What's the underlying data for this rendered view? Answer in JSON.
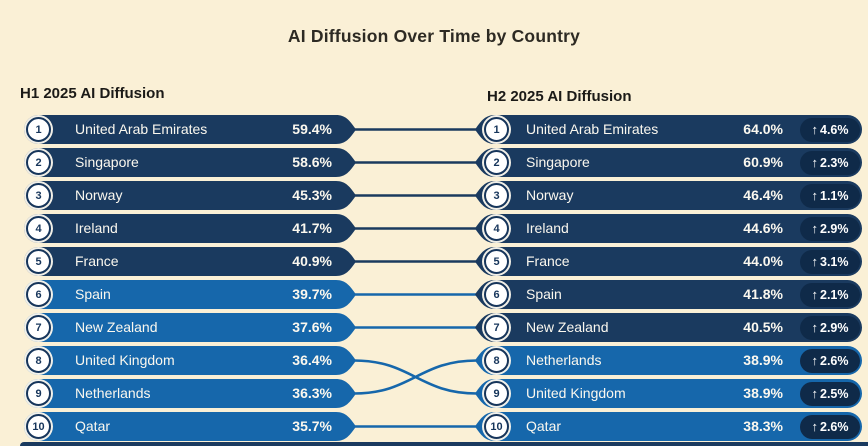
{
  "title": "AI Diffusion Over Time by Country",
  "icons": {
    "up_arrow": "↑"
  },
  "colors": {
    "background": "#FAF0D6",
    "dark_row": "#1A3A5F",
    "light_row": "#1667AB",
    "change_badge": "#0F2A49",
    "row_text": "#FBF8EF",
    "title_text": "#2D2A23"
  },
  "chart_data": {
    "type": "table",
    "title": "AI Diffusion Over Time by Country",
    "description": "Ranked bump-style comparison of AI diffusion percentage by country for H1 vs H2 2025; connector lines link the same country across periods; row color dark navy for values ≥40%, lighter blue below 40%.",
    "columns": [
      {
        "header": "H1 2025 AI Diffusion",
        "rows": [
          {
            "rank": "1",
            "country": "United Arab Emirates",
            "value": "59.4%",
            "tier": "dark"
          },
          {
            "rank": "2",
            "country": "Singapore",
            "value": "58.6%",
            "tier": "dark"
          },
          {
            "rank": "3",
            "country": "Norway",
            "value": "45.3%",
            "tier": "dark"
          },
          {
            "rank": "4",
            "country": "Ireland",
            "value": "41.7%",
            "tier": "dark"
          },
          {
            "rank": "5",
            "country": "France",
            "value": "40.9%",
            "tier": "dark"
          },
          {
            "rank": "6",
            "country": "Spain",
            "value": "39.7%",
            "tier": "light"
          },
          {
            "rank": "7",
            "country": "New Zealand",
            "value": "37.6%",
            "tier": "light"
          },
          {
            "rank": "8",
            "country": "United Kingdom",
            "value": "36.4%",
            "tier": "light"
          },
          {
            "rank": "9",
            "country": "Netherlands",
            "value": "36.3%",
            "tier": "light"
          },
          {
            "rank": "10",
            "country": "Qatar",
            "value": "35.7%",
            "tier": "light"
          }
        ]
      },
      {
        "header": "H2 2025 AI Diffusion",
        "rows": [
          {
            "rank": "1",
            "country": "United Arab Emirates",
            "value": "64.0%",
            "change": "4.6%",
            "change_direction": "up",
            "tier": "dark"
          },
          {
            "rank": "2",
            "country": "Singapore",
            "value": "60.9%",
            "change": "2.3%",
            "change_direction": "up",
            "tier": "dark"
          },
          {
            "rank": "3",
            "country": "Norway",
            "value": "46.4%",
            "change": "1.1%",
            "change_direction": "up",
            "tier": "dark"
          },
          {
            "rank": "4",
            "country": "Ireland",
            "value": "44.6%",
            "change": "2.9%",
            "change_direction": "up",
            "tier": "dark"
          },
          {
            "rank": "5",
            "country": "France",
            "value": "44.0%",
            "change": "3.1%",
            "change_direction": "up",
            "tier": "dark"
          },
          {
            "rank": "6",
            "country": "Spain",
            "value": "41.8%",
            "change": "2.1%",
            "change_direction": "up",
            "tier": "dark"
          },
          {
            "rank": "7",
            "country": "New Zealand",
            "value": "40.5%",
            "change": "2.9%",
            "change_direction": "up",
            "tier": "dark"
          },
          {
            "rank": "8",
            "country": "Netherlands",
            "value": "38.9%",
            "change": "2.6%",
            "change_direction": "up",
            "tier": "light"
          },
          {
            "rank": "9",
            "country": "United Kingdom",
            "value": "38.9%",
            "change": "2.5%",
            "change_direction": "up",
            "tier": "light"
          },
          {
            "rank": "10",
            "country": "Qatar",
            "value": "38.3%",
            "change": "2.6%",
            "change_direction": "up",
            "tier": "light"
          }
        ]
      }
    ]
  }
}
